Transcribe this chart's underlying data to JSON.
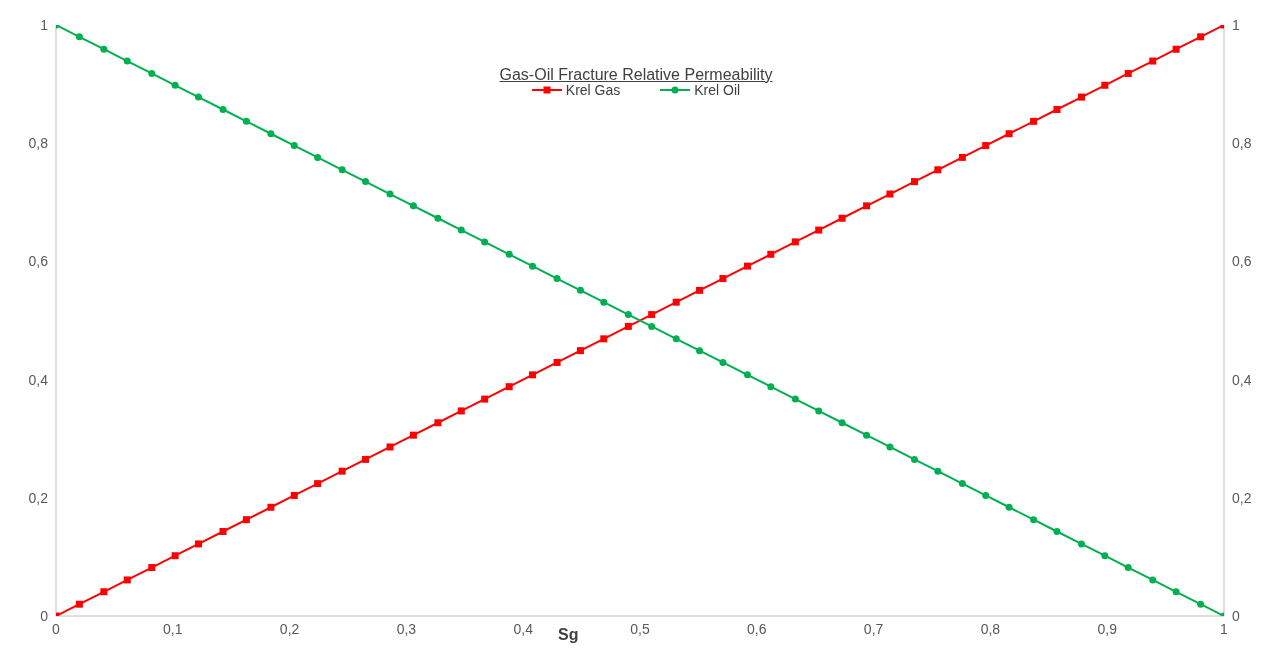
{
  "chart_data": {
    "type": "line",
    "title": "Gas-Oil Fracture Relative Permeability",
    "xlabel": "Sg",
    "x": [
      0,
      0.02,
      0.041,
      0.061,
      0.082,
      0.102,
      0.122,
      0.143,
      0.163,
      0.184,
      0.204,
      0.224,
      0.245,
      0.265,
      0.286,
      0.306,
      0.327,
      0.347,
      0.367,
      0.388,
      0.408,
      0.429,
      0.449,
      0.469,
      0.49,
      0.51,
      0.531,
      0.551,
      0.571,
      0.592,
      0.612,
      0.633,
      0.653,
      0.673,
      0.694,
      0.714,
      0.735,
      0.755,
      0.776,
      0.796,
      0.816,
      0.837,
      0.857,
      0.878,
      0.898,
      0.918,
      0.939,
      0.959,
      0.98,
      1
    ],
    "series": [
      {
        "name": "Krel Gas",
        "color": "#ff0000",
        "marker": "square",
        "values": [
          0,
          0.02,
          0.041,
          0.061,
          0.082,
          0.102,
          0.122,
          0.143,
          0.163,
          0.184,
          0.204,
          0.224,
          0.245,
          0.265,
          0.286,
          0.306,
          0.327,
          0.347,
          0.367,
          0.388,
          0.408,
          0.429,
          0.449,
          0.469,
          0.49,
          0.51,
          0.531,
          0.551,
          0.571,
          0.592,
          0.612,
          0.633,
          0.653,
          0.673,
          0.694,
          0.714,
          0.735,
          0.755,
          0.776,
          0.796,
          0.816,
          0.837,
          0.857,
          0.878,
          0.898,
          0.918,
          0.939,
          0.959,
          0.98,
          1
        ]
      },
      {
        "name": "Krel Oil",
        "color": "#00b050",
        "marker": "circle",
        "values": [
          1,
          0.98,
          0.959,
          0.939,
          0.918,
          0.898,
          0.878,
          0.857,
          0.837,
          0.816,
          0.796,
          0.776,
          0.755,
          0.735,
          0.714,
          0.694,
          0.673,
          0.653,
          0.633,
          0.612,
          0.592,
          0.571,
          0.551,
          0.531,
          0.51,
          0.49,
          0.469,
          0.449,
          0.429,
          0.408,
          0.388,
          0.367,
          0.347,
          0.327,
          0.306,
          0.286,
          0.265,
          0.245,
          0.224,
          0.204,
          0.184,
          0.163,
          0.143,
          0.122,
          0.102,
          0.082,
          0.061,
          0.041,
          0.02,
          0
        ]
      }
    ],
    "xlim": [
      0,
      1
    ],
    "xticks": [
      0,
      {
        "value": 0.1,
        "label": "0,1"
      },
      {
        "value": 0.2,
        "label": "0,2"
      },
      {
        "value": 0.3,
        "label": "0,3"
      },
      {
        "value": 0.4,
        "label": "0,4"
      },
      {
        "value": 0.5,
        "label": "0,5"
      },
      {
        "value": 0.6,
        "label": "0,6"
      },
      {
        "value": 0.7,
        "label": "0,7"
      },
      {
        "value": 0.8,
        "label": "0,8"
      },
      {
        "value": 0.9,
        "label": "0,9"
      },
      1
    ],
    "ylim": [
      0,
      1
    ],
    "yticks": [
      0,
      {
        "value": 0.2,
        "label": "0,2"
      },
      {
        "value": 0.4,
        "label": "0,4"
      },
      {
        "value": 0.6,
        "label": "0,6"
      },
      {
        "value": 0.8,
        "label": "0,8"
      },
      1
    ],
    "y2lim": [
      0,
      1
    ],
    "y2ticks": [
      0,
      {
        "value": 0.2,
        "label": "0,2"
      },
      {
        "value": 0.4,
        "label": "0,4"
      },
      {
        "value": 0.6,
        "label": "0,6"
      },
      {
        "value": 0.8,
        "label": "0,8"
      },
      1
    ],
    "grid": false,
    "legend": "top",
    "line_style": "solid"
  }
}
